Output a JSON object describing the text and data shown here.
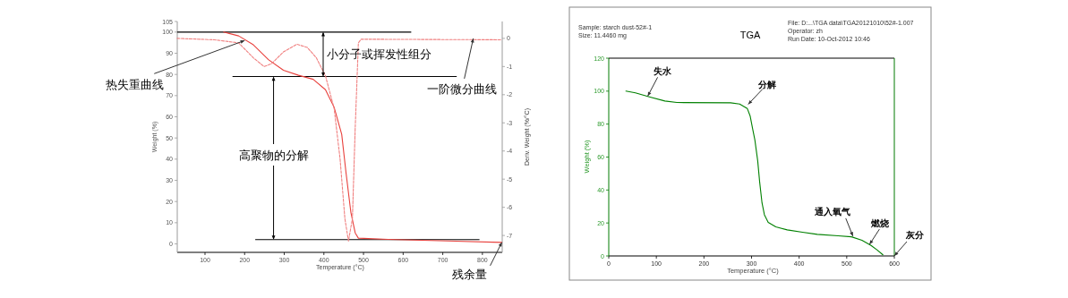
{
  "chart_data": [
    {
      "type": "line",
      "xlabel": "Temperature (°C)",
      "ylabel": "Weight (%)",
      "y2label": "Deriv. Weight (%/°C)",
      "xlim": [
        30,
        850
      ],
      "xticks": [
        100,
        200,
        300,
        400,
        500,
        600,
        700,
        800
      ],
      "ylim": [
        -4,
        105
      ],
      "yticks": [
        0,
        10,
        20,
        30,
        40,
        50,
        60,
        70,
        80,
        90,
        100,
        105
      ],
      "y2lim": [
        -7.6,
        0.6
      ],
      "y2ticks": [
        0,
        -1,
        -2,
        -3,
        -4,
        -5,
        -6,
        -7
      ],
      "series": [
        {
          "color": "#e8403c",
          "x": [
            147,
            185,
            222,
            260,
            298,
            336,
            373,
            404,
            426,
            445,
            456,
            468,
            479,
            487,
            562,
            849
          ],
          "values": [
            100,
            98.2,
            94,
            87,
            82,
            79.6,
            77.7,
            72.8,
            64.4,
            51.7,
            33.4,
            15,
            5.2,
            2.7,
            2.1,
            0.7
          ]
        },
        {
          "color": "#f08080",
          "axis": "y2",
          "line_style": "dashed",
          "x": [
            30,
            124,
            185,
            222,
            249,
            268,
            298,
            332,
            358,
            381,
            404,
            426,
            441,
            453,
            462,
            472,
            479,
            487,
            494,
            849
          ],
          "values": [
            0,
            -0.05,
            -0.16,
            -0.69,
            -1.0,
            -0.9,
            -0.48,
            -0.21,
            -0.32,
            -0.69,
            -1.33,
            -2.5,
            -4.3,
            -6.4,
            -7.2,
            -6.4,
            -3.2,
            -0.16,
            -0.03,
            -0.05
          ]
        }
      ],
      "ref_lines": [
        {
          "axis": "y",
          "value": 100,
          "color": "#000000"
        },
        {
          "axis": "y",
          "value": 79,
          "color": "#000000"
        },
        {
          "axis": "y",
          "value": 2,
          "color": "#000000"
        }
      ],
      "annotations": [
        {
          "text": "热失重曲线",
          "x": 200,
          "y": 96
        },
        {
          "text": "一阶微分曲线",
          "x": 777,
          "y": 97
        },
        "小分子或挥发性组分",
        {
          "text": "高聚物的分解",
          "x": 273,
          "y": 2
        },
        {
          "text": "残余量",
          "x": 849,
          "y": 0.7
        }
      ]
    },
    {
      "type": "line",
      "title": "TGA",
      "xlabel": "Temperature (°C)",
      "ylabel": "Weight (%)",
      "xlim": [
        0,
        600
      ],
      "xticks": [
        0,
        100,
        200,
        300,
        400,
        500,
        600
      ],
      "ylim": [
        0,
        120
      ],
      "yticks": [
        0,
        20,
        40,
        60,
        80,
        100,
        120
      ],
      "series": [
        {
          "color": "#008000",
          "x": [
            36,
            56,
            87,
            118,
            143,
            256,
            275,
            291,
            297,
            302,
            307,
            313,
            317,
            322,
            327,
            335,
            351,
            375,
            407,
            438,
            482,
            510,
            532,
            551,
            564,
            576
          ],
          "values": [
            100,
            99,
            96.4,
            94,
            93.1,
            92.9,
            92.2,
            89.5,
            85,
            77.6,
            70.4,
            57.6,
            45,
            32.2,
            25,
            20.4,
            17.6,
            15.8,
            14.4,
            13.1,
            12.2,
            11.6,
            9.5,
            6.4,
            3.6,
            0.7
          ]
        }
      ],
      "annotations": [
        "Sample: starch dust-52#-1",
        "Size: 11.4460 mg",
        "File: D:...\\TGA data\\TGA20121010\\52#-1.007",
        "Operator: zh",
        "Run Date: 10-Oct-2012 10:46",
        {
          "text": "失水",
          "x": 82,
          "y": 97
        },
        {
          "text": "分解",
          "x": 293,
          "y": 92
        },
        {
          "text": "通入氧气",
          "x": 513,
          "y": 12
        },
        {
          "text": "燃烧",
          "x": 548,
          "y": 7
        },
        "灰分"
      ]
    }
  ]
}
